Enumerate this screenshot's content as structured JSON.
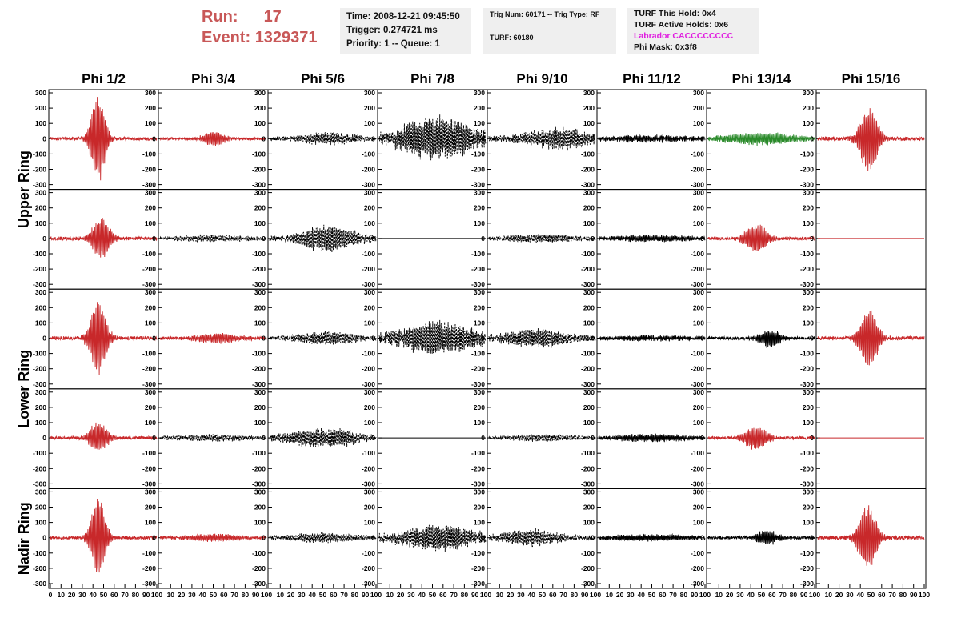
{
  "header": {
    "run_label": "Run:",
    "run_value": "17",
    "event_label": "Event:",
    "event_value": "1329371"
  },
  "info_box_1": {
    "time": "Time: 2008-12-21 09:45:50",
    "trigger": "Trigger: 0.274721 ms",
    "priority": "Priority: 1 -- Queue: 1"
  },
  "info_box_2": {
    "trig": "Trig Num: 60171 -- Trig Type: RF",
    "turf": "TURF: 60180"
  },
  "info_box_3": {
    "this_hold": "TURF This Hold: 0x4",
    "active_holds": "TURF Active Holds: 0x6",
    "labrador": "Labrador CACCCCCCCC",
    "phi_mask": "Phi Mask: 0x3f8"
  },
  "colors": {
    "red_trace": "#c8282a",
    "black_trace": "#000000",
    "green_trace": "#2a8a2a",
    "header_text": "#c85858",
    "labrador_text": "#e020e0"
  },
  "chart_data": {
    "type": "line",
    "columns": [
      "Phi 1/2",
      "Phi 3/4",
      "Phi 5/6",
      "Phi 7/8",
      "Phi 9/10",
      "Phi 11/12",
      "Phi 13/14",
      "Phi 15/16"
    ],
    "ring_labels": [
      {
        "text": "Upper Ring",
        "rows": [
          0,
          1
        ]
      },
      {
        "text": "Lower Ring",
        "rows": [
          2,
          3
        ]
      },
      {
        "text": "Nadir Ring",
        "rows": [
          4
        ]
      }
    ],
    "y_ticks": [
      "-300",
      "-200",
      "-100",
      "0",
      "100",
      "200",
      "300"
    ],
    "ylim": [
      -300,
      300
    ],
    "x_ticks": [
      "0",
      "10",
      "20",
      "30",
      "40",
      "50",
      "60",
      "70",
      "80",
      "90",
      "100"
    ],
    "xlim": [
      0,
      100
    ],
    "panels": [
      [
        {
          "color": "red",
          "style": "solid",
          "peak_amp": 300,
          "center": 45,
          "width": 8,
          "noise": 10,
          "freq": 1.6
        },
        {
          "color": "red",
          "style": "solid",
          "peak_amp": 50,
          "center": 50,
          "width": 12,
          "noise": 8,
          "freq": 1.6
        },
        {
          "color": "black",
          "style": "dashed",
          "peak_amp": 40,
          "center": 55,
          "width": 30,
          "noise": 12,
          "freq": 1.7
        },
        {
          "color": "black",
          "style": "dashed",
          "peak_amp": 140,
          "center": 55,
          "width": 40,
          "noise": 30,
          "freq": 1.8
        },
        {
          "color": "black",
          "style": "dashed",
          "peak_amp": 70,
          "center": 65,
          "width": 35,
          "noise": 18,
          "freq": 1.7
        },
        {
          "color": "black",
          "style": "solid",
          "peak_amp": 20,
          "center": 50,
          "width": 50,
          "noise": 10,
          "freq": 1.8
        },
        {
          "color": "green",
          "style": "solid",
          "peak_amp": 40,
          "center": 50,
          "width": 40,
          "noise": 10,
          "freq": 1.6
        },
        {
          "color": "red",
          "style": "solid",
          "peak_amp": 220,
          "center": 48,
          "width": 10,
          "noise": 12,
          "freq": 1.6
        }
      ],
      [
        {
          "color": "red",
          "style": "solid",
          "peak_amp": 140,
          "center": 48,
          "width": 10,
          "noise": 12,
          "freq": 1.6
        },
        {
          "color": "black",
          "style": "dashed",
          "peak_amp": 20,
          "center": 50,
          "width": 40,
          "noise": 8,
          "freq": 1.7
        },
        {
          "color": "black",
          "style": "dashed",
          "peak_amp": 90,
          "center": 55,
          "width": 30,
          "noise": 15,
          "freq": 1.7
        },
        {
          "color": "black",
          "style": "flat",
          "peak_amp": 0,
          "center": 50,
          "width": 10,
          "noise": 0,
          "freq": 1
        },
        {
          "color": "black",
          "style": "dashed",
          "peak_amp": 25,
          "center": 50,
          "width": 40,
          "noise": 10,
          "freq": 1.7
        },
        {
          "color": "black",
          "style": "solid",
          "peak_amp": 20,
          "center": 50,
          "width": 50,
          "noise": 8,
          "freq": 1.8
        },
        {
          "color": "red",
          "style": "solid",
          "peak_amp": 100,
          "center": 45,
          "width": 12,
          "noise": 10,
          "freq": 1.6
        },
        {
          "color": "red",
          "style": "flat",
          "peak_amp": 0,
          "center": 50,
          "width": 10,
          "noise": 0,
          "freq": 1
        }
      ],
      [
        {
          "color": "red",
          "style": "solid",
          "peak_amp": 250,
          "center": 45,
          "width": 9,
          "noise": 12,
          "freq": 1.6
        },
        {
          "color": "red",
          "style": "solid",
          "peak_amp": 30,
          "center": 55,
          "width": 25,
          "noise": 10,
          "freq": 1.6
        },
        {
          "color": "black",
          "style": "dashed",
          "peak_amp": 40,
          "center": 55,
          "width": 35,
          "noise": 12,
          "freq": 1.7
        },
        {
          "color": "black",
          "style": "dashed",
          "peak_amp": 110,
          "center": 55,
          "width": 40,
          "noise": 25,
          "freq": 1.8
        },
        {
          "color": "black",
          "style": "dashed",
          "peak_amp": 60,
          "center": 45,
          "width": 35,
          "noise": 15,
          "freq": 1.7
        },
        {
          "color": "black",
          "style": "solid",
          "peak_amp": 15,
          "center": 50,
          "width": 50,
          "noise": 8,
          "freq": 1.8
        },
        {
          "color": "black",
          "style": "solid",
          "peak_amp": 60,
          "center": 58,
          "width": 12,
          "noise": 10,
          "freq": 1.7
        },
        {
          "color": "red",
          "style": "solid",
          "peak_amp": 200,
          "center": 48,
          "width": 10,
          "noise": 12,
          "freq": 1.6
        }
      ],
      [
        {
          "color": "red",
          "style": "solid",
          "peak_amp": 110,
          "center": 45,
          "width": 10,
          "noise": 10,
          "freq": 1.6
        },
        {
          "color": "black",
          "style": "dashed",
          "peak_amp": 20,
          "center": 50,
          "width": 40,
          "noise": 8,
          "freq": 1.7
        },
        {
          "color": "black",
          "style": "dashed",
          "peak_amp": 60,
          "center": 50,
          "width": 40,
          "noise": 15,
          "freq": 1.7
        },
        {
          "color": "black",
          "style": "flat",
          "peak_amp": 0,
          "center": 50,
          "width": 10,
          "noise": 0,
          "freq": 1
        },
        {
          "color": "black",
          "style": "dashed",
          "peak_amp": 20,
          "center": 50,
          "width": 40,
          "noise": 8,
          "freq": 1.7
        },
        {
          "color": "black",
          "style": "solid",
          "peak_amp": 25,
          "center": 50,
          "width": 40,
          "noise": 8,
          "freq": 1.8
        },
        {
          "color": "red",
          "style": "solid",
          "peak_amp": 80,
          "center": 45,
          "width": 12,
          "noise": 10,
          "freq": 1.6
        },
        {
          "color": "red",
          "style": "flat",
          "peak_amp": 0,
          "center": 50,
          "width": 10,
          "noise": 0,
          "freq": 1
        }
      ],
      [
        {
          "color": "red",
          "style": "solid",
          "peak_amp": 280,
          "center": 45,
          "width": 8,
          "noise": 10,
          "freq": 1.6
        },
        {
          "color": "red",
          "style": "solid",
          "peak_amp": 25,
          "center": 50,
          "width": 30,
          "noise": 8,
          "freq": 1.6
        },
        {
          "color": "black",
          "style": "dashed",
          "peak_amp": 30,
          "center": 50,
          "width": 40,
          "noise": 10,
          "freq": 1.7
        },
        {
          "color": "black",
          "style": "dashed",
          "peak_amp": 80,
          "center": 55,
          "width": 40,
          "noise": 22,
          "freq": 1.8
        },
        {
          "color": "black",
          "style": "dashed",
          "peak_amp": 55,
          "center": 40,
          "width": 30,
          "noise": 15,
          "freq": 1.7
        },
        {
          "color": "black",
          "style": "solid",
          "peak_amp": 20,
          "center": 50,
          "width": 50,
          "noise": 8,
          "freq": 1.8
        },
        {
          "color": "black",
          "style": "solid",
          "peak_amp": 50,
          "center": 55,
          "width": 12,
          "noise": 10,
          "freq": 1.7
        },
        {
          "color": "red",
          "style": "solid",
          "peak_amp": 220,
          "center": 47,
          "width": 10,
          "noise": 12,
          "freq": 1.6
        }
      ]
    ]
  }
}
